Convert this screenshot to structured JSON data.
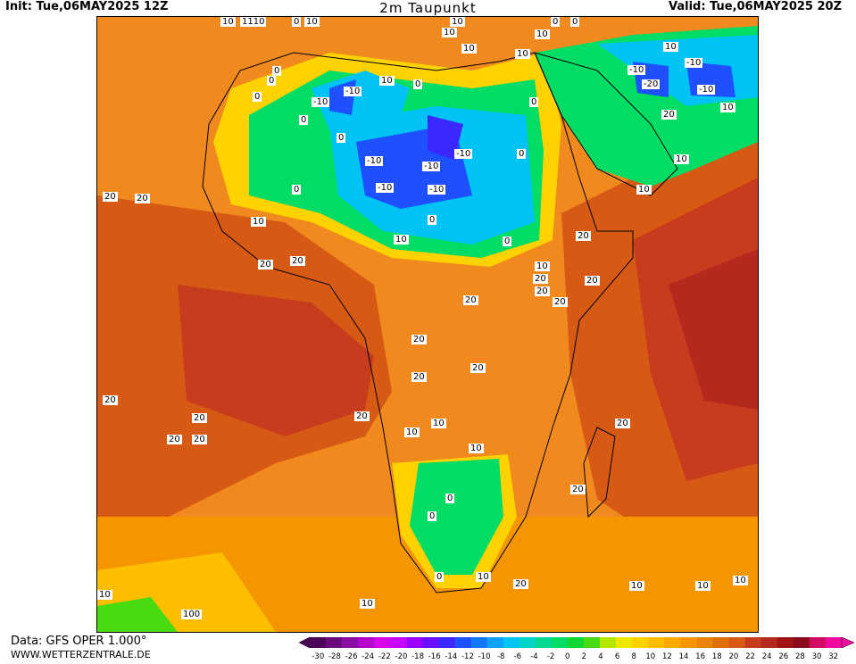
{
  "header": {
    "init": "Init: Tue,06MAY2025 12Z",
    "title": "2m Taupunkt",
    "valid": "Valid: Tue,06MAY2025 20Z"
  },
  "footer": {
    "data_source": "Data: GFS OPER 1.000°",
    "website": "WWW.WETTERZENTRALE.DE"
  },
  "legend": {
    "ticks": [
      "-30",
      "-28",
      "-26",
      "-24",
      "-22",
      "-20",
      "-18",
      "-16",
      "-14",
      "-12",
      "-10",
      "-8",
      "-6",
      "-4",
      "-2",
      "0",
      "2",
      "4",
      "6",
      "8",
      "10",
      "12",
      "14",
      "16",
      "18",
      "20",
      "22",
      "24",
      "26",
      "28",
      "30",
      "32"
    ],
    "colors": [
      "#4b0059",
      "#6a0a7a",
      "#8b0aa0",
      "#b400c8",
      "#d800e8",
      "#c800ff",
      "#9a00ff",
      "#6a10ff",
      "#3a28ff",
      "#1e50ff",
      "#1478ff",
      "#0ca0ff",
      "#00c3f5",
      "#00d4c8",
      "#00d896",
      "#00dc64",
      "#10d832",
      "#48dc10",
      "#b4e600",
      "#f0e800",
      "#ffd200",
      "#ffbe00",
      "#ffaa00",
      "#f59600",
      "#eb8200",
      "#e16e00",
      "#d75a14",
      "#c83c1e",
      "#b4281e",
      "#a01414",
      "#8c0a1e",
      "#d20a64",
      "#f00aa0"
    ]
  },
  "map_labels": [
    {
      "text": "10"
    },
    {
      "text": "1110"
    },
    {
      "text": "0"
    },
    {
      "text": "10"
    },
    {
      "text": "10"
    },
    {
      "text": "10"
    },
    {
      "text": "10"
    },
    {
      "text": "0"
    },
    {
      "text": "0"
    },
    {
      "text": "10"
    },
    {
      "text": "0"
    },
    {
      "text": "0"
    },
    {
      "text": "-10"
    },
    {
      "text": "10"
    },
    {
      "text": "0"
    },
    {
      "text": "10"
    },
    {
      "text": "10"
    },
    {
      "text": "-10"
    },
    {
      "text": "-10"
    },
    {
      "text": "-20"
    },
    {
      "text": "-10"
    },
    {
      "text": "0"
    },
    {
      "text": "-10"
    },
    {
      "text": "0"
    },
    {
      "text": "20"
    },
    {
      "text": "10"
    },
    {
      "text": "0"
    },
    {
      "text": "0"
    },
    {
      "text": "-10"
    },
    {
      "text": "-10"
    },
    {
      "text": "0"
    },
    {
      "text": "10"
    },
    {
      "text": "-10"
    },
    {
      "text": "-10"
    },
    {
      "text": "-10"
    },
    {
      "text": "0"
    },
    {
      "text": "20"
    },
    {
      "text": "20"
    },
    {
      "text": "10"
    },
    {
      "text": "0"
    },
    {
      "text": "10"
    },
    {
      "text": "20"
    },
    {
      "text": "0"
    },
    {
      "text": "10"
    },
    {
      "text": "20"
    },
    {
      "text": "20"
    },
    {
      "text": "20"
    },
    {
      "text": "10"
    },
    {
      "text": "20"
    },
    {
      "text": "20"
    },
    {
      "text": "20"
    },
    {
      "text": "20"
    },
    {
      "text": "20"
    },
    {
      "text": "20"
    },
    {
      "text": "20"
    },
    {
      "text": "20"
    },
    {
      "text": "20"
    },
    {
      "text": "10"
    },
    {
      "text": "10"
    },
    {
      "text": "20"
    },
    {
      "text": "20"
    },
    {
      "text": "10"
    },
    {
      "text": "20"
    },
    {
      "text": "20"
    },
    {
      "text": "0"
    },
    {
      "text": "0"
    },
    {
      "text": "20"
    },
    {
      "text": "0"
    },
    {
      "text": "10"
    },
    {
      "text": "20"
    },
    {
      "text": "10"
    },
    {
      "text": "10"
    },
    {
      "text": "10"
    },
    {
      "text": "10"
    },
    {
      "text": "100"
    },
    {
      "text": "10"
    }
  ]
}
